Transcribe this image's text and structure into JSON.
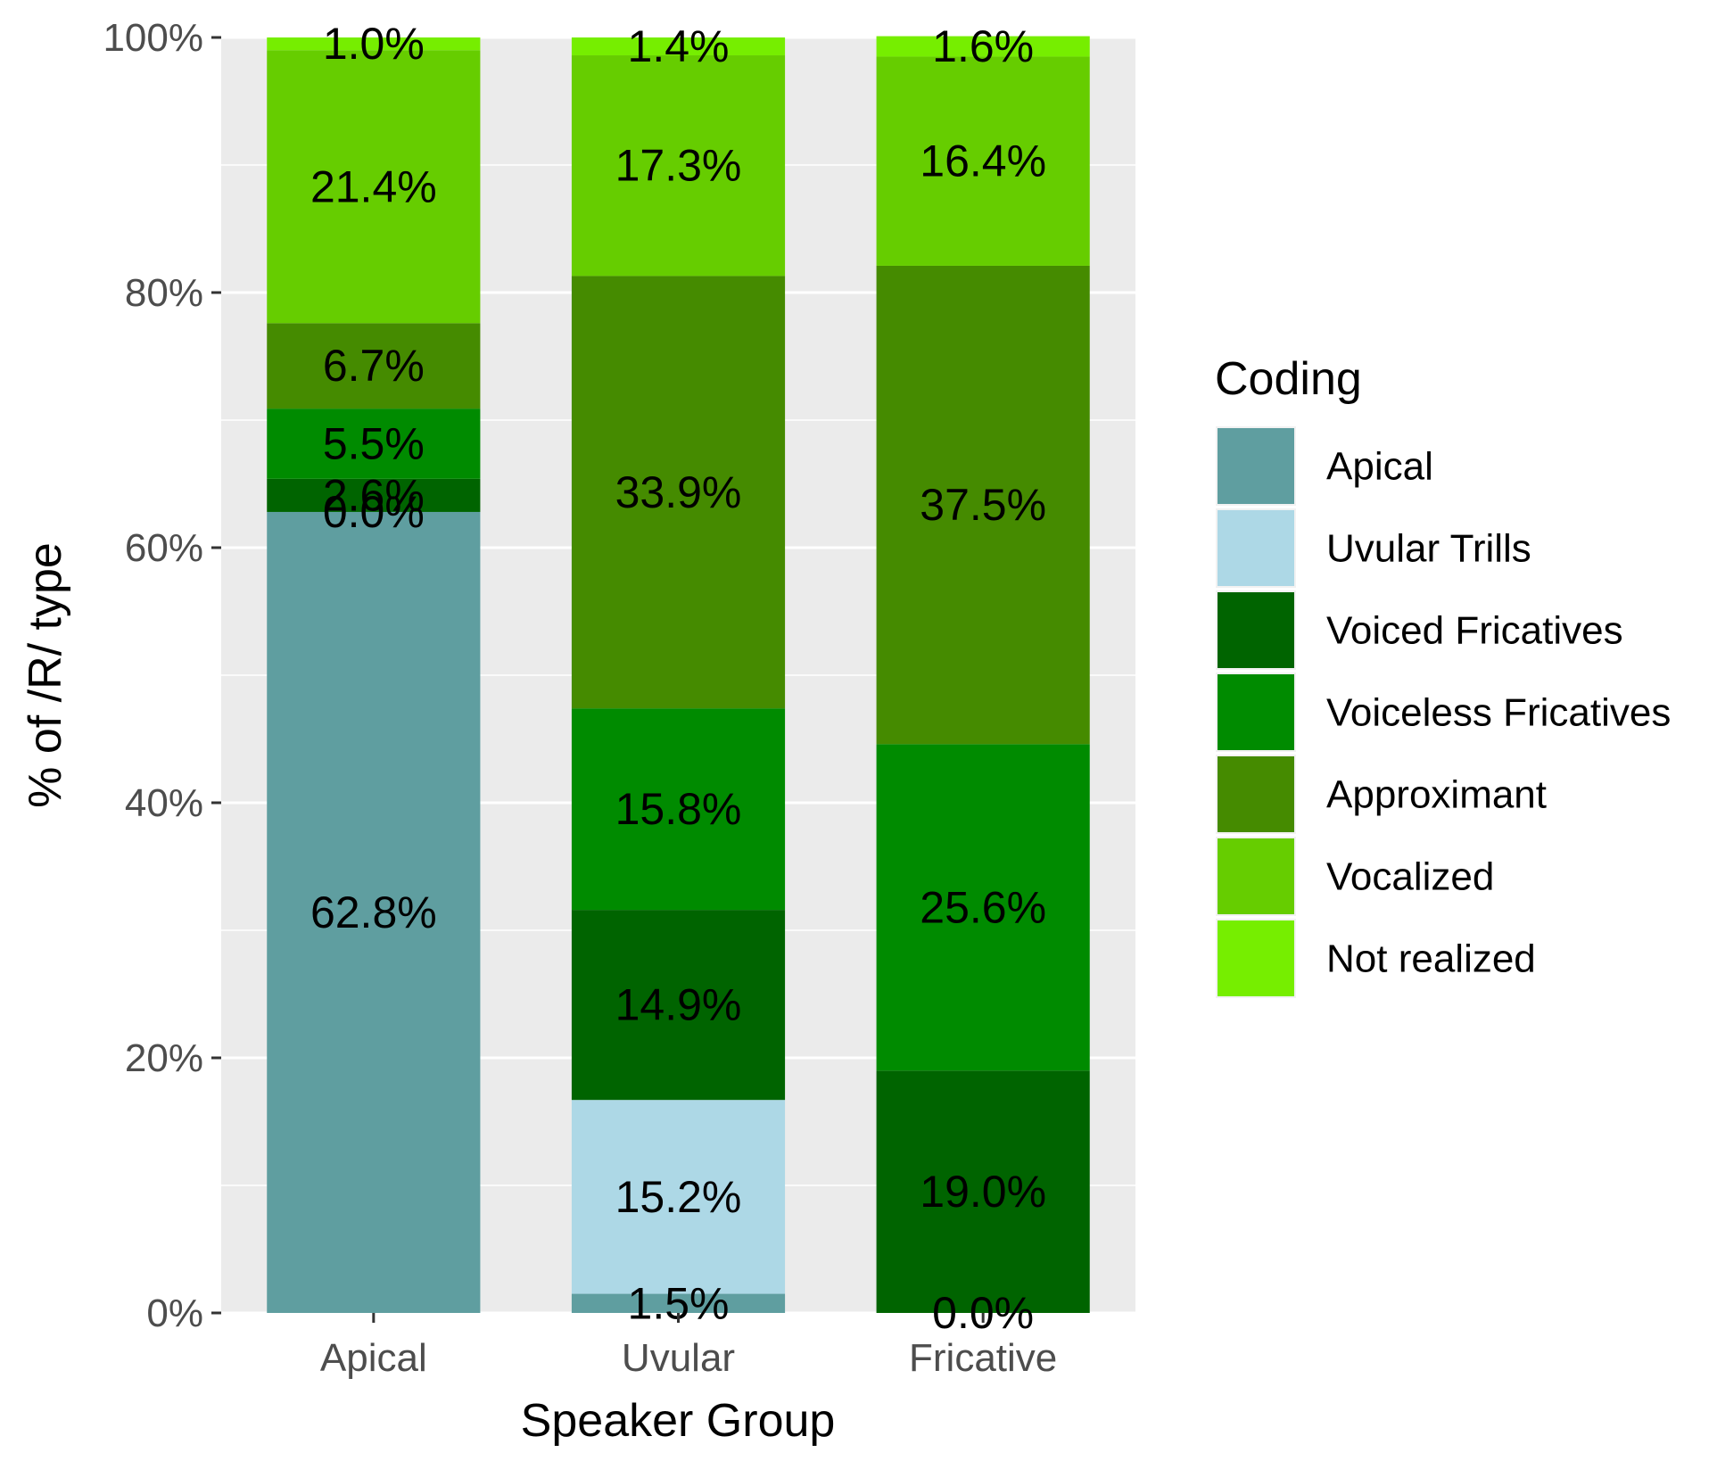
{
  "chart_data": {
    "type": "bar",
    "stacked": true,
    "categories": [
      "Apical",
      "Uvular",
      "Fricative"
    ],
    "series": [
      {
        "name": "Apical",
        "color": "#5f9ea0",
        "values": [
          62.8,
          1.5,
          0.0
        ],
        "labels": [
          "62.8%",
          "1.5%",
          ""
        ]
      },
      {
        "name": "Uvular Trills",
        "color": "#add8e6",
        "values": [
          0.0,
          15.2,
          0.0
        ],
        "labels": [
          "0.0%",
          "15.2%",
          "0.0%"
        ]
      },
      {
        "name": "Voiced Fricatives",
        "color": "#006400",
        "values": [
          2.6,
          14.9,
          19.0
        ],
        "labels": [
          "2.6%",
          "14.9%",
          "19.0%"
        ]
      },
      {
        "name": "Voiceless Fricatives",
        "color": "#008b00",
        "values": [
          5.5,
          15.8,
          25.6
        ],
        "labels": [
          "5.5%",
          "15.8%",
          "25.6%"
        ]
      },
      {
        "name": "Approximant",
        "color": "#458b00",
        "values": [
          6.7,
          33.9,
          37.5
        ],
        "labels": [
          "6.7%",
          "33.9%",
          "37.5%"
        ]
      },
      {
        "name": "Vocalized",
        "color": "#66cd00",
        "values": [
          21.4,
          17.3,
          16.4
        ],
        "labels": [
          "21.4%",
          "17.3%",
          "16.4%"
        ]
      },
      {
        "name": "Not realized",
        "color": "#76ee00",
        "values": [
          1.0,
          1.4,
          1.6
        ],
        "labels": [
          "1.0%",
          "1.4%",
          "1.6%"
        ]
      }
    ],
    "xlabel": "Speaker Group",
    "ylabel": "% of /R/ type",
    "ylim": [
      0,
      100
    ],
    "yticks": [
      0,
      20,
      40,
      60,
      80,
      100
    ],
    "ytick_labels": [
      "0%",
      "20%",
      "40%",
      "60%",
      "80%",
      "100%"
    ],
    "legend_title": "Coding",
    "legend_position": "right",
    "grid": true,
    "panel_background": "#ebebeb"
  }
}
